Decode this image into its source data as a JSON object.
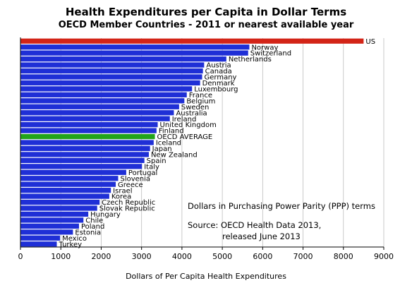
{
  "chart_data": {
    "type": "bar",
    "orientation": "horizontal",
    "title": "Health Expenditures per Capita in Dollar Terms",
    "subtitle": "OECD Member Countries - 2011 or nearest available year",
    "xlabel": "Dollars of Per Capita Health Expenditures",
    "ylabel": "",
    "xlim": [
      0,
      9000
    ],
    "xticks": [
      0,
      1000,
      2000,
      3000,
      4000,
      5000,
      6000,
      7000,
      8000,
      9000
    ],
    "grid": "vertical",
    "colors": {
      "default": "#1f2fd6",
      "US": "#d32417",
      "OECD AVERAGE": "#22a31a"
    },
    "categories": [
      "US",
      "Norway",
      "Switzerland",
      "Netherlands",
      "Austria",
      "Canada",
      "Germany",
      "Denmark",
      "Luxembourg",
      "France",
      "Belgium",
      "Sweden",
      "Australia",
      "Ireland",
      "United Kingdom",
      "Finland",
      "OECD AVERAGE",
      "Iceland",
      "Japan",
      "New Zealand",
      "Spain",
      "Italy",
      "Portugal",
      "Slovenia",
      "Greece",
      "Israel",
      "Korea",
      "Czech Republic",
      "Slovak Republic",
      "Hungary",
      "Chile",
      "Poland",
      "Estonia",
      "Mexico",
      "Turkey"
    ],
    "values": [
      8500,
      5670,
      5640,
      5100,
      4550,
      4520,
      4500,
      4450,
      4250,
      4120,
      4060,
      3930,
      3800,
      3700,
      3400,
      3370,
      3330,
      3300,
      3210,
      3180,
      3070,
      3010,
      2620,
      2420,
      2360,
      2240,
      2200,
      1960,
      1900,
      1680,
      1560,
      1450,
      1300,
      980,
      900
    ]
  },
  "annotations": {
    "ppp": "Dollars in Purchasing Power Parity (PPP) terms",
    "source_line1": "Source:  OECD Health Data 2013,",
    "source_line2": "released June 2013"
  }
}
